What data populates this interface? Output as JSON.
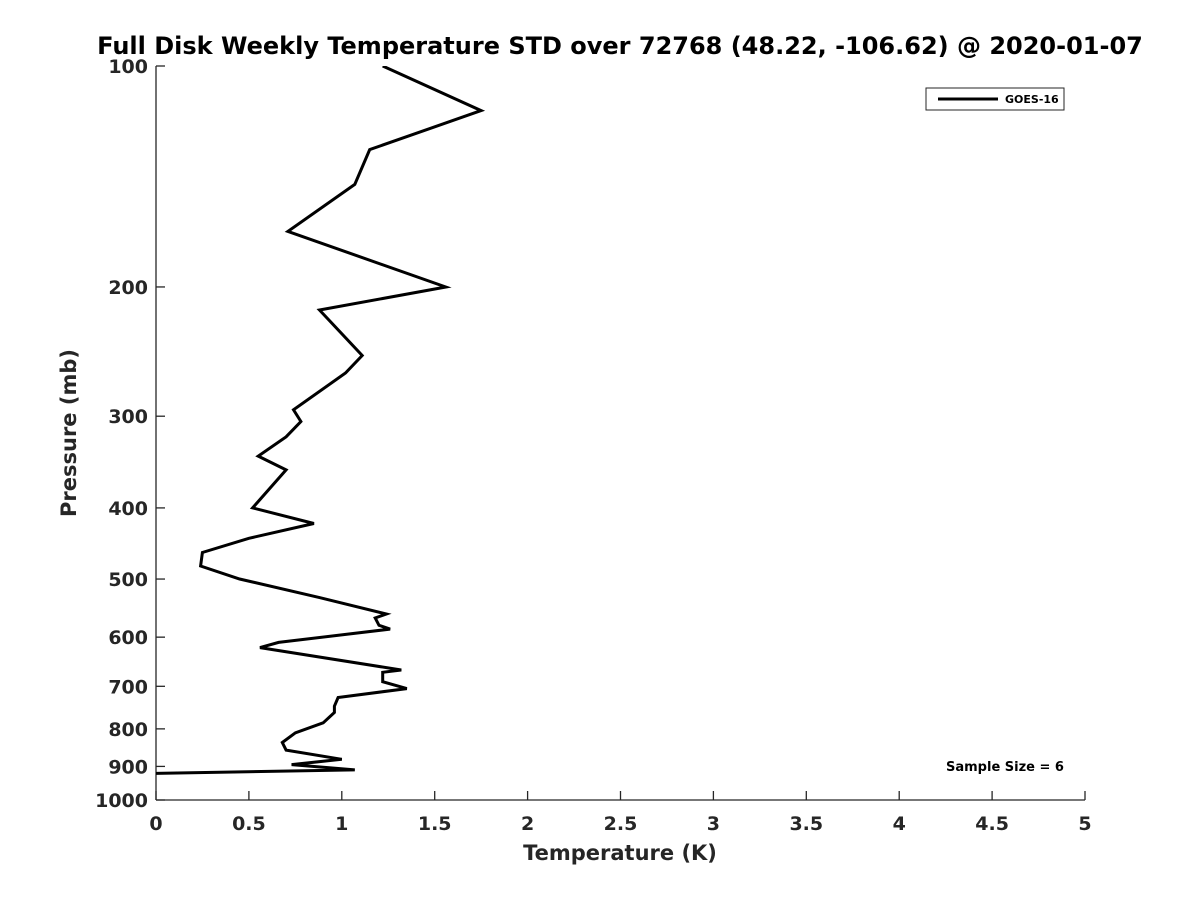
{
  "chart_data": {
    "type": "line",
    "title": "Full Disk Weekly Temperature STD over 72768 (48.22, -106.62) @ 2020-01-07",
    "xlabel": "Temperature (K)",
    "ylabel": "Pressure (mb)",
    "xlim": [
      0,
      5
    ],
    "ylim": [
      100,
      1000
    ],
    "y_scale": "log",
    "y_reversed": true,
    "x_ticks": [
      "0",
      "0.5",
      "1",
      "1.5",
      "2",
      "2.5",
      "3",
      "3.5",
      "4",
      "4.5",
      "5"
    ],
    "y_ticks": [
      "100",
      "200",
      "300",
      "400",
      "500",
      "600",
      "700",
      "800",
      "900",
      "1000"
    ],
    "legend": {
      "position": "top-right",
      "entries": [
        "GOES-16"
      ]
    },
    "annotation": "Sample Size = 6",
    "series": [
      {
        "name": "GOES-16",
        "color": "#000000",
        "points": [
          [
            1.22,
            100
          ],
          [
            1.75,
            115
          ],
          [
            1.15,
            130
          ],
          [
            1.07,
            145
          ],
          [
            0.71,
            168
          ],
          [
            1.56,
            200
          ],
          [
            0.88,
            215
          ],
          [
            1.11,
            248
          ],
          [
            1.02,
            262
          ],
          [
            0.74,
            294
          ],
          [
            0.78,
            305
          ],
          [
            0.7,
            320
          ],
          [
            0.55,
            340
          ],
          [
            0.7,
            355
          ],
          [
            0.52,
            400
          ],
          [
            0.85,
            420
          ],
          [
            0.5,
            440
          ],
          [
            0.25,
            460
          ],
          [
            0.24,
            480
          ],
          [
            0.45,
            500
          ],
          [
            0.88,
            530
          ],
          [
            1.24,
            558
          ],
          [
            1.18,
            565
          ],
          [
            1.2,
            578
          ],
          [
            1.26,
            585
          ],
          [
            0.66,
            610
          ],
          [
            0.56,
            620
          ],
          [
            1.32,
            665
          ],
          [
            1.22,
            670
          ],
          [
            1.22,
            690
          ],
          [
            1.35,
            705
          ],
          [
            0.98,
            725
          ],
          [
            0.96,
            745
          ],
          [
            0.96,
            760
          ],
          [
            0.9,
            785
          ],
          [
            0.75,
            810
          ],
          [
            0.68,
            835
          ],
          [
            0.7,
            855
          ],
          [
            1.0,
            880
          ],
          [
            0.73,
            895
          ],
          [
            1.07,
            910
          ],
          [
            0.0,
            920
          ]
        ]
      }
    ]
  }
}
